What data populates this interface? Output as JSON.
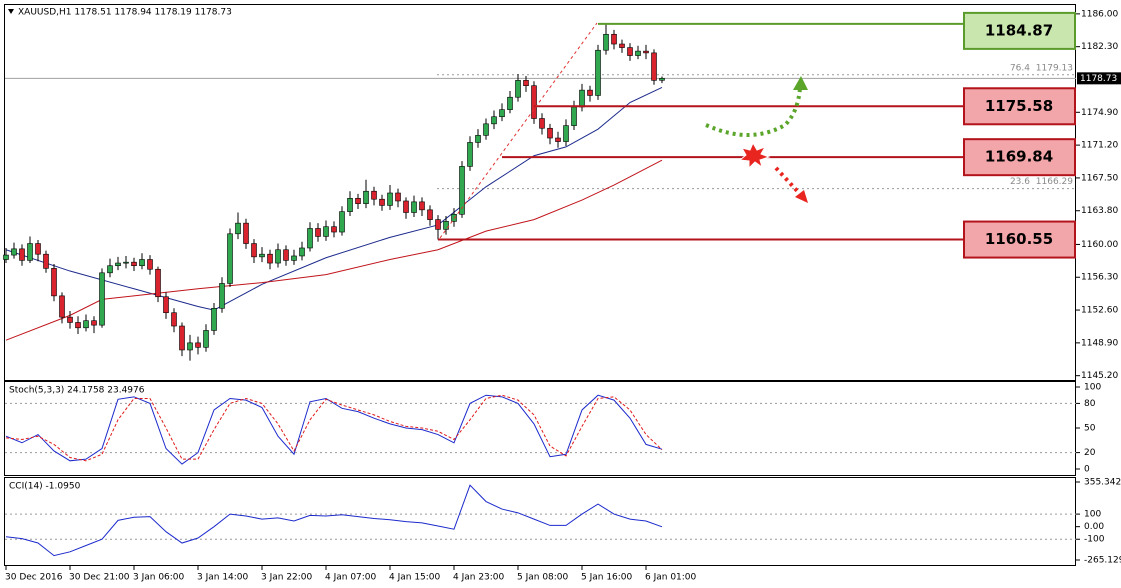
{
  "chart_data": {
    "type": "candlestick",
    "title": "XAUUSD,H1 1178.51 1178.94 1178.19 1178.73",
    "categories": [
      "30 Dec 2016",
      null,
      null,
      null,
      null,
      null,
      null,
      null,
      "30 Dec 21:00",
      null,
      null,
      null,
      null,
      null,
      null,
      null,
      "3 Jan 06:00",
      null,
      null,
      null,
      null,
      null,
      null,
      null,
      "3 Jan 14:00",
      null,
      null,
      null,
      null,
      null,
      null,
      null,
      "3 Jan 22:00",
      null,
      null,
      null,
      null,
      null,
      null,
      null,
      "4 Jan 07:00",
      null,
      null,
      null,
      null,
      null,
      null,
      null,
      "4 Jan 15:00",
      null,
      null,
      null,
      null,
      null,
      null,
      null,
      "4 Jan 23:00",
      null,
      null,
      null,
      null,
      null,
      null,
      null,
      "5 Jan 08:00",
      null,
      null,
      null,
      null,
      null,
      null,
      null,
      "5 Jan 16:00",
      null,
      null,
      null,
      null,
      null,
      null,
      null,
      "6 Jan 01:00",
      null,
      null
    ],
    "open": [
      1158.3,
      1158.8,
      1159.5,
      1158.2,
      1160.1,
      1158.9,
      1157.3,
      1154.2,
      1151.8,
      1151.2,
      1150.6,
      1151.4,
      1150.9,
      1156.8,
      1157.6,
      1157.9,
      1158.0,
      1157.6,
      1158.3,
      1157.2,
      1154.1,
      1152.3,
      1150.8,
      1148.1,
      1148.9,
      1148.4,
      1150.3,
      1152.8,
      1155.6,
      1161.2,
      1162.4,
      1160.1,
      1158.6,
      1158.9,
      1157.9,
      1159.4,
      1158.2,
      1158.7,
      1159.6,
      1161.8,
      1160.9,
      1162.0,
      1161.4,
      1163.7,
      1165.2,
      1164.6,
      1166.0,
      1165.1,
      1164.4,
      1165.8,
      1164.9,
      1163.6,
      1164.8,
      1163.9,
      1162.8,
      1161.7,
      1162.6,
      1163.4,
      1168.8,
      1171.5,
      1172.3,
      1173.6,
      1174.4,
      1175.2,
      1176.6,
      1178.5,
      1177.9,
      1174.2,
      1173.1,
      1172.0,
      1171.6,
      1173.4,
      1175.5,
      1177.4,
      1176.8,
      1181.9,
      1183.7,
      1182.6,
      1182.2,
      1181.3,
      1181.8,
      1181.6,
      1178.51
    ],
    "high": [
      1159.6,
      1160.2,
      1160.0,
      1160.9,
      1160.5,
      1159.3,
      1157.8,
      1154.6,
      1152.5,
      1151.9,
      1152.1,
      1151.9,
      1157.3,
      1158.4,
      1158.6,
      1158.7,
      1158.5,
      1159.0,
      1158.8,
      1157.5,
      1154.6,
      1152.8,
      1151.2,
      1149.8,
      1149.6,
      1151.0,
      1153.4,
      1156.3,
      1161.8,
      1163.6,
      1162.9,
      1160.6,
      1159.7,
      1159.4,
      1160.1,
      1159.9,
      1159.4,
      1160.3,
      1162.5,
      1162.4,
      1162.7,
      1162.6,
      1164.3,
      1166.0,
      1165.7,
      1167.3,
      1166.5,
      1165.6,
      1166.7,
      1166.3,
      1165.3,
      1165.5,
      1165.3,
      1164.4,
      1163.3,
      1163.2,
      1164.1,
      1169.4,
      1172.2,
      1173.0,
      1174.2,
      1175.1,
      1175.9,
      1177.3,
      1179.2,
      1179.0,
      1178.4,
      1174.8,
      1173.6,
      1172.7,
      1174.1,
      1176.2,
      1178.1,
      1177.9,
      1182.5,
      1184.87,
      1184.2,
      1183.1,
      1182.7,
      1182.4,
      1182.5,
      1182.0,
      1178.94
    ],
    "low": [
      1157.9,
      1158.4,
      1157.6,
      1157.9,
      1158.1,
      1156.8,
      1153.6,
      1151.1,
      1150.5,
      1149.9,
      1150.2,
      1150.0,
      1150.6,
      1156.3,
      1157.1,
      1157.3,
      1157.0,
      1157.2,
      1156.6,
      1153.5,
      1151.6,
      1150.1,
      1147.4,
      1146.9,
      1147.6,
      1147.9,
      1149.8,
      1152.3,
      1155.2,
      1160.6,
      1159.5,
      1157.9,
      1158.0,
      1157.2,
      1157.4,
      1157.6,
      1157.7,
      1158.2,
      1159.2,
      1160.3,
      1160.4,
      1160.8,
      1161.0,
      1163.2,
      1164.0,
      1164.1,
      1164.4,
      1163.8,
      1163.9,
      1164.2,
      1162.9,
      1163.1,
      1163.2,
      1162.1,
      1160.55,
      1161.1,
      1162.0,
      1163.0,
      1168.3,
      1170.9,
      1171.8,
      1173.0,
      1173.9,
      1174.8,
      1176.1,
      1177.2,
      1173.6,
      1172.4,
      1171.3,
      1170.9,
      1171.1,
      1172.9,
      1175.0,
      1176.1,
      1176.3,
      1181.4,
      1182.0,
      1181.6,
      1180.7,
      1180.9,
      1180.9,
      1178.0,
      1178.19
    ],
    "close": [
      1158.8,
      1159.5,
      1158.2,
      1160.1,
      1158.9,
      1157.3,
      1154.2,
      1151.8,
      1151.2,
      1150.6,
      1151.4,
      1150.9,
      1156.8,
      1157.6,
      1157.9,
      1158.0,
      1157.6,
      1158.3,
      1157.2,
      1154.1,
      1152.3,
      1150.8,
      1148.1,
      1148.9,
      1148.4,
      1150.3,
      1152.8,
      1155.6,
      1161.2,
      1162.4,
      1160.1,
      1158.6,
      1158.9,
      1157.9,
      1159.4,
      1158.2,
      1158.7,
      1159.6,
      1161.8,
      1160.9,
      1162.0,
      1161.4,
      1163.7,
      1165.2,
      1164.6,
      1166.0,
      1165.1,
      1164.4,
      1165.8,
      1164.9,
      1163.6,
      1164.8,
      1163.9,
      1162.8,
      1161.7,
      1162.6,
      1163.4,
      1168.8,
      1171.5,
      1172.3,
      1173.6,
      1174.4,
      1175.2,
      1176.6,
      1178.5,
      1177.9,
      1174.2,
      1173.1,
      1172.0,
      1171.6,
      1173.4,
      1175.5,
      1177.4,
      1176.8,
      1181.9,
      1183.7,
      1182.6,
      1182.2,
      1181.3,
      1181.8,
      1181.6,
      1178.5,
      1178.73
    ],
    "up_color": "#2fa84f",
    "down_color": "#d9232e",
    "ylim": [
      1144.6,
      1187.0
    ],
    "yticks": [
      {
        "value": 1186,
        "label": "1186.00"
      },
      {
        "value": 1182.3,
        "label": "1182.30"
      },
      {
        "value": 1174.9,
        "label": "1174.90"
      },
      {
        "value": 1171.2,
        "label": "1171.20"
      },
      {
        "value": 1167.5,
        "label": "1167.50"
      },
      {
        "value": 1163.8,
        "label": "1163.80"
      },
      {
        "value": 1160,
        "label": "1160.00"
      },
      {
        "value": 1156.3,
        "label": "1156.30"
      },
      {
        "value": 1152.6,
        "label": "1152.60"
      },
      {
        "value": 1148.9,
        "label": "1148.90"
      },
      {
        "value": 1145.2,
        "label": "1145.20"
      }
    ],
    "moving_averages": [
      {
        "color": "#1c2a8c",
        "x": [
          0,
          8,
          16,
          24,
          26,
          32,
          40,
          48,
          54,
          60,
          66,
          70,
          74,
          78,
          82
        ],
        "values": [
          1159.4,
          1157.0,
          1155.0,
          1153.0,
          1152.6,
          1155.5,
          1158.5,
          1160.8,
          1162.2,
          1166.5,
          1170.0,
          1171.0,
          1173.0,
          1176.0,
          1177.7
        ]
      },
      {
        "color": "#c0141b",
        "x": [
          0,
          8,
          12,
          24,
          32,
          40,
          48,
          54,
          60,
          66,
          72,
          76,
          82
        ],
        "values": [
          1149.2,
          1152.0,
          1153.8,
          1155.0,
          1155.7,
          1156.6,
          1158.3,
          1159.4,
          1161.5,
          1162.8,
          1165.0,
          1166.7,
          1169.5
        ]
      }
    ],
    "levels": [
      {
        "value": 1184.87,
        "color": "#5b9b2b",
        "fill": "#c8e6ad"
      },
      {
        "value": 1175.58,
        "color": "#b3131b",
        "fill": "#f3a6aa"
      },
      {
        "value": 1169.84,
        "color": "#b3131b",
        "fill": "#f3a6aa"
      },
      {
        "value": 1160.55,
        "color": "#b3131b",
        "fill": "#f3a6aa"
      }
    ],
    "fibonacci": [
      {
        "level": 76.4,
        "value": 1179.13
      },
      {
        "level": 23.6,
        "value": 1166.29
      }
    ],
    "stochastic": {
      "type": "line",
      "title": "Stoch(5,3,3) 24.1758 23.4976",
      "x": [
        0,
        2,
        4,
        6,
        8,
        10,
        12,
        14,
        16,
        18,
        20,
        22,
        24,
        26,
        28,
        30,
        32,
        34,
        36,
        38,
        40,
        42,
        44,
        46,
        48,
        50,
        52,
        54,
        56,
        58,
        60,
        62,
        64,
        66,
        68,
        70,
        72,
        74,
        76,
        78,
        80,
        82
      ],
      "series": [
        {
          "color": "#1c2acc",
          "dashed": false,
          "values": [
            40,
            32,
            42,
            22,
            10,
            12,
            25,
            85,
            88,
            80,
            25,
            6,
            20,
            72,
            86,
            84,
            75,
            40,
            18,
            82,
            86,
            74,
            70,
            62,
            55,
            50,
            48,
            42,
            32,
            80,
            90,
            88,
            80,
            55,
            15,
            18,
            72,
            90,
            84,
            62,
            30,
            24.1758
          ]
        },
        {
          "color": "#e01a1a",
          "dashed": true,
          "values": [
            38,
            36,
            40,
            30,
            14,
            10,
            18,
            60,
            86,
            86,
            50,
            12,
            12,
            48,
            80,
            86,
            80,
            55,
            22,
            60,
            85,
            78,
            72,
            66,
            58,
            52,
            50,
            46,
            36,
            60,
            86,
            90,
            84,
            66,
            28,
            16,
            52,
            86,
            88,
            72,
            42,
            23.4976
          ]
        }
      ],
      "ylim": [
        0,
        100
      ],
      "yticks": [
        100,
        80,
        50,
        20,
        0
      ],
      "level_lines": [
        80,
        20
      ]
    },
    "cci": {
      "type": "line",
      "title": "CCI(14) -1.0950",
      "x": [
        0,
        2,
        4,
        6,
        8,
        10,
        12,
        14,
        16,
        18,
        20,
        22,
        24,
        26,
        28,
        30,
        32,
        34,
        36,
        38,
        40,
        42,
        44,
        46,
        48,
        50,
        52,
        54,
        56,
        58,
        60,
        62,
        64,
        66,
        68,
        70,
        72,
        74,
        76,
        78,
        80,
        82
      ],
      "series": [
        {
          "color": "#1c2acc",
          "dashed": false,
          "values": [
            -80,
            -95,
            -130,
            -230,
            -200,
            -150,
            -100,
            50,
            75,
            80,
            -40,
            -130,
            -90,
            0,
            100,
            85,
            60,
            70,
            45,
            90,
            85,
            95,
            80,
            65,
            55,
            40,
            30,
            5,
            -20,
            330,
            200,
            140,
            110,
            60,
            10,
            10,
            100,
            180,
            100,
            60,
            45,
            -1.095
          ]
        }
      ],
      "ylim": [
        -265.1299,
        355.3421
      ],
      "yticks": [
        355.3421,
        100,
        {
          "value": 0,
          "label": "0.00"
        },
        -100,
        -265.1299
      ],
      "level_lines": [
        100,
        -100
      ]
    }
  }
}
